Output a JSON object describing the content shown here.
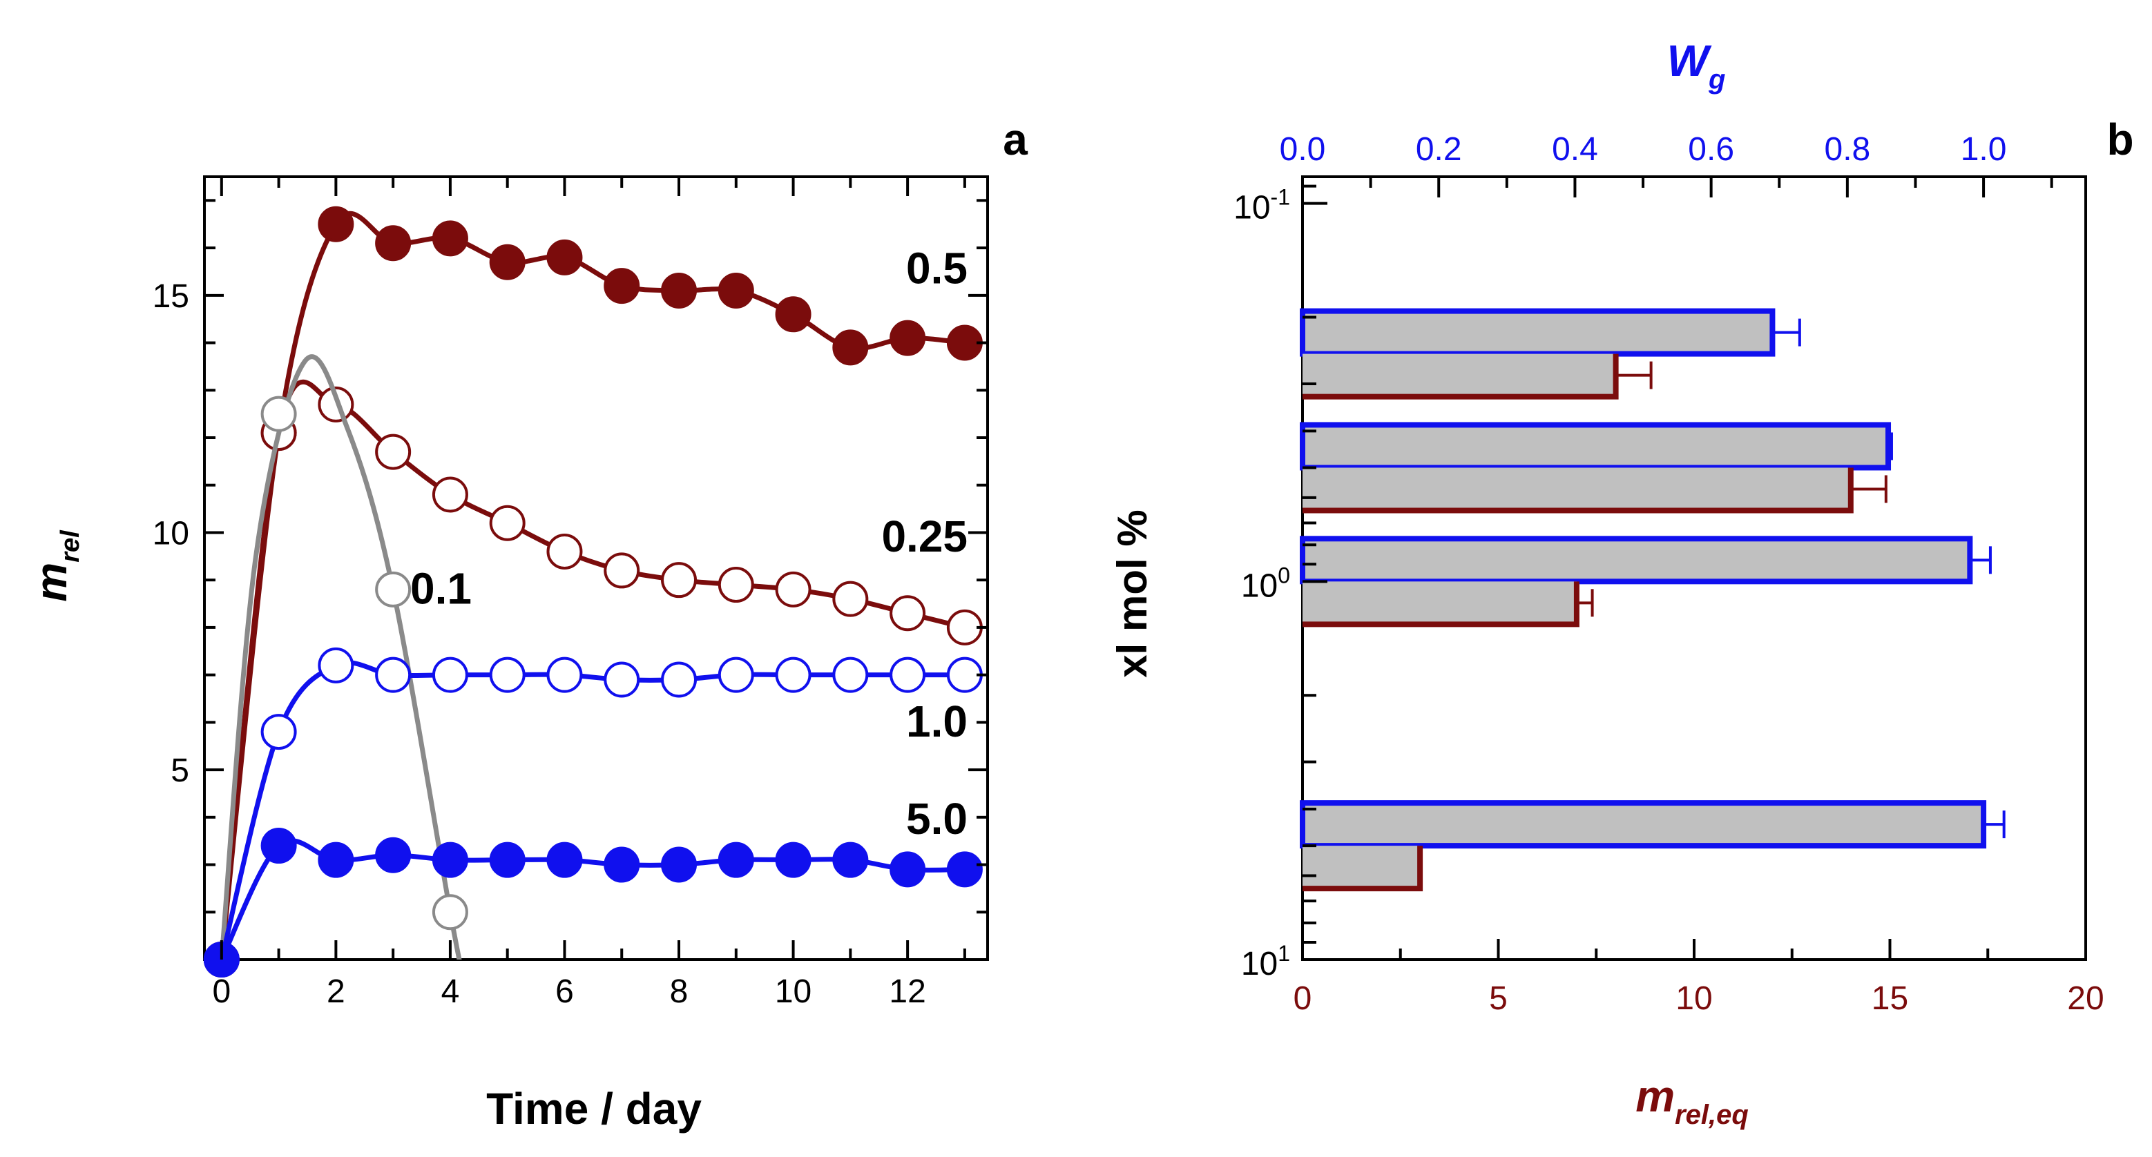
{
  "chart_data": [
    {
      "panel_label": "a",
      "type": "line",
      "xlabel": "Time / day",
      "ylabel_main": "m",
      "ylabel_sub": "rel",
      "xlim": [
        -0.3,
        13.4
      ],
      "ylim": [
        1,
        17.5
      ],
      "xticks": [
        0,
        2,
        4,
        6,
        8,
        10,
        12
      ],
      "yticks": [
        5,
        10,
        15
      ],
      "colors": {
        "darkred": "#7b0c0c",
        "blue": "#1010ee",
        "gray": "#8a8a8a"
      },
      "series": [
        {
          "name": "0.5",
          "color": "#7b0c0c",
          "filled": true,
          "x": [
            0,
            1,
            2,
            3,
            4,
            5,
            6,
            7,
            8,
            9,
            10,
            11,
            12,
            13
          ],
          "y": [
            1.0,
            12.1,
            16.5,
            16.1,
            16.2,
            15.7,
            15.8,
            15.2,
            15.1,
            15.1,
            14.6,
            13.9,
            14.1,
            14.0
          ]
        },
        {
          "name": "0.25",
          "color": "#7b0c0c",
          "filled": false,
          "x": [
            0,
            1,
            2,
            3,
            4,
            5,
            6,
            7,
            8,
            9,
            10,
            11,
            12,
            13
          ],
          "y": [
            1.0,
            12.1,
            12.7,
            11.7,
            10.8,
            10.2,
            9.6,
            9.2,
            9.0,
            8.9,
            8.8,
            8.6,
            8.3,
            8.0
          ]
        },
        {
          "name": "0.1",
          "color": "#8a8a8a",
          "filled": false,
          "x": [
            0,
            1,
            3,
            4
          ],
          "y": [
            1.0,
            12.5,
            8.8,
            2.0
          ]
        },
        {
          "name": "1.0",
          "color": "#1010ee",
          "filled": false,
          "x": [
            0,
            1,
            2,
            3,
            4,
            5,
            6,
            7,
            8,
            9,
            10,
            11,
            12,
            13
          ],
          "y": [
            1.0,
            5.8,
            7.2,
            7.0,
            7.0,
            7.0,
            7.0,
            6.9,
            6.9,
            7.0,
            7.0,
            7.0,
            7.0,
            7.0
          ]
        },
        {
          "name": "5.0",
          "color": "#1010ee",
          "filled": true,
          "x": [
            0,
            1,
            2,
            3,
            4,
            5,
            6,
            7,
            8,
            9,
            10,
            11,
            12,
            13
          ],
          "y": [
            1.0,
            3.4,
            3.1,
            3.2,
            3.1,
            3.1,
            3.1,
            3.0,
            3.0,
            3.1,
            3.1,
            3.1,
            2.9,
            2.9
          ]
        }
      ]
    },
    {
      "panel_label": "b",
      "type": "bar",
      "orientation": "horizontal",
      "ylabel": "xl mol %",
      "xlabel_bottom_main": "m",
      "xlabel_bottom_sub": "rel,eq",
      "xlabel_top_main": "W",
      "xlabel_top_sub": "g",
      "y_scale": "log",
      "y_reversed": true,
      "ylim": [
        0.085,
        10
      ],
      "yticks": [
        {
          "base": "10",
          "exp": "-1"
        },
        {
          "base": "10",
          "exp": "0"
        },
        {
          "base": "10",
          "exp": "1"
        }
      ],
      "xlim_bottom": [
        0,
        20
      ],
      "xticks_bottom": [
        "0",
        "5",
        "10",
        "15",
        "20"
      ],
      "xlim_top": [
        0,
        1.15
      ],
      "xticks_top": [
        "0.0",
        "0.2",
        "0.4",
        "0.6",
        "0.8",
        "1.0"
      ],
      "categories": [
        0.25,
        0.5,
        1.0,
        5.0
      ],
      "series": [
        {
          "name": "W_g",
          "axis": "top",
          "color": "#1010ee",
          "fill": "#c0c0c0",
          "values": [
            0.69,
            0.86,
            0.98,
            1.0
          ],
          "errors": [
            0.04,
            0.005,
            0.03,
            0.03
          ]
        },
        {
          "name": "m_rel,eq",
          "axis": "bottom",
          "color": "#7b0c0c",
          "fill": "#c0c0c0",
          "values": [
            8.0,
            14.0,
            7.0,
            3.0
          ],
          "errors": [
            0.9,
            0.9,
            0.4,
            0
          ]
        }
      ]
    }
  ]
}
